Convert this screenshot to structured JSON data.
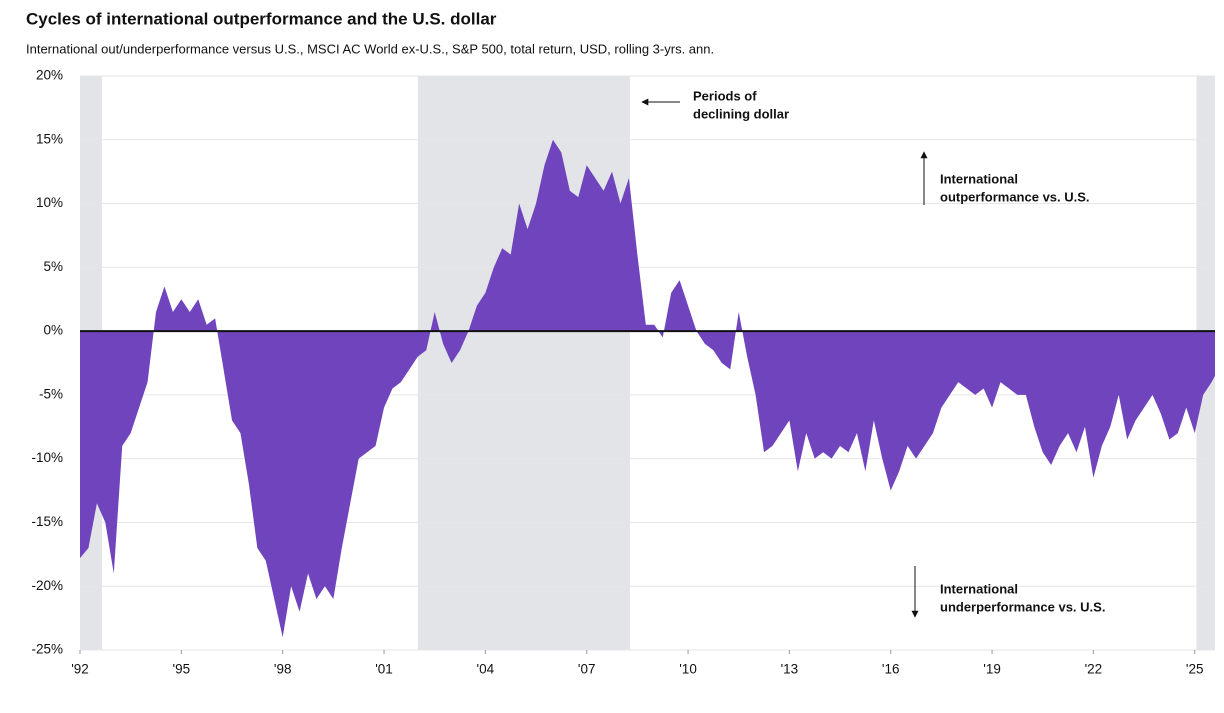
{
  "chart_data": {
    "type": "area",
    "title": "Cycles of international outperformance and the U.S. dollar",
    "subtitle": "International out/underperformance versus U.S., MSCI AC World ex-U.S., S&P 500, total return, USD, rolling 3-yrs. ann.",
    "color": "#6f44bd",
    "shade_color": "#e3e4e8",
    "grid": true,
    "shaded_periods": [
      [
        1992,
        1992.65
      ],
      [
        2002,
        2008.28
      ],
      [
        2025.05,
        2025.6
      ]
    ],
    "annotations": [
      [
        "Periods of",
        "declining dollar"
      ],
      [
        "International",
        "outperformance vs. U.S."
      ],
      [
        "International",
        "underperformance vs. U.S."
      ]
    ],
    "xlim": [
      1992,
      2025.6
    ],
    "xticks": [
      {
        "value": 1992,
        "label": "'92"
      },
      {
        "value": 1995,
        "label": "'95"
      },
      {
        "value": 1998,
        "label": "'98"
      },
      {
        "value": 2001,
        "label": "'01"
      },
      {
        "value": 2004,
        "label": "'04"
      },
      {
        "value": 2007,
        "label": "'07"
      },
      {
        "value": 2010,
        "label": "'10"
      },
      {
        "value": 2013,
        "label": "'13"
      },
      {
        "value": 2016,
        "label": "'16"
      },
      {
        "value": 2019,
        "label": "'19"
      },
      {
        "value": 2022,
        "label": "'22"
      },
      {
        "value": 2025,
        "label": "'25"
      }
    ],
    "ylim": [
      -25,
      20
    ],
    "yticks": [
      {
        "value": 20,
        "label": "20%"
      },
      {
        "value": 15,
        "label": "15%"
      },
      {
        "value": 10,
        "label": "10%"
      },
      {
        "value": 5,
        "label": "5%"
      },
      {
        "value": 0,
        "label": "0%"
      },
      {
        "value": -5,
        "label": "-5%"
      },
      {
        "value": -10,
        "label": "-10%"
      },
      {
        "value": -15,
        "label": "-15%"
      },
      {
        "value": -20,
        "label": "-20%"
      },
      {
        "value": -25,
        "label": "-25%"
      }
    ],
    "x": [
      1992.0,
      1992.25,
      1992.5,
      1992.75,
      1993.0,
      1993.25,
      1993.5,
      1993.75,
      1994.0,
      1994.25,
      1994.5,
      1994.75,
      1995.0,
      1995.25,
      1995.5,
      1995.75,
      1996.0,
      1996.25,
      1996.5,
      1996.75,
      1997.0,
      1997.25,
      1997.5,
      1997.75,
      1998.0,
      1998.25,
      1998.5,
      1998.75,
      1999.0,
      1999.25,
      1999.5,
      1999.75,
      2000.0,
      2000.25,
      2000.5,
      2000.75,
      2001.0,
      2001.25,
      2001.5,
      2001.75,
      2002.0,
      2002.25,
      2002.5,
      2002.75,
      2003.0,
      2003.25,
      2003.5,
      2003.75,
      2004.0,
      2004.25,
      2004.5,
      2004.75,
      2005.0,
      2005.25,
      2005.5,
      2005.75,
      2006.0,
      2006.25,
      2006.5,
      2006.75,
      2007.0,
      2007.25,
      2007.5,
      2007.75,
      2008.0,
      2008.25,
      2008.5,
      2008.75,
      2009.0,
      2009.25,
      2009.5,
      2009.75,
      2010.0,
      2010.25,
      2010.5,
      2010.75,
      2011.0,
      2011.25,
      2011.5,
      2011.75,
      2012.0,
      2012.25,
      2012.5,
      2012.75,
      2013.0,
      2013.25,
      2013.5,
      2013.75,
      2014.0,
      2014.25,
      2014.5,
      2014.75,
      2015.0,
      2015.25,
      2015.5,
      2015.75,
      2016.0,
      2016.25,
      2016.5,
      2016.75,
      2017.0,
      2017.25,
      2017.5,
      2017.75,
      2018.0,
      2018.25,
      2018.5,
      2018.75,
      2019.0,
      2019.25,
      2019.5,
      2019.75,
      2020.0,
      2020.25,
      2020.5,
      2020.75,
      2021.0,
      2021.25,
      2021.5,
      2021.75,
      2022.0,
      2022.25,
      2022.5,
      2022.75,
      2023.0,
      2023.25,
      2023.5,
      2023.75,
      2024.0,
      2024.25,
      2024.5,
      2024.75,
      2025.0,
      2025.25,
      2025.5,
      2025.6
    ],
    "values": [
      -17.8,
      -17,
      -13.5,
      -15,
      -19,
      -9,
      -8,
      -6,
      -4,
      1.5,
      3.5,
      1.5,
      2.5,
      1.5,
      2.5,
      0.5,
      1,
      -3,
      -7,
      -8,
      -12,
      -17,
      -18,
      -21,
      -24,
      -20,
      -22,
      -19,
      -21,
      -20,
      -21,
      -17,
      -13.5,
      -10,
      -9.5,
      -9,
      -6,
      -4.5,
      -4,
      -3,
      -2,
      -1.5,
      1.5,
      -1,
      -2.5,
      -1.5,
      0,
      2,
      3,
      5,
      6.5,
      6,
      10,
      8,
      10,
      13,
      15,
      14,
      11,
      10.5,
      13,
      12,
      11,
      12.5,
      10,
      12,
      6,
      0.5,
      0.5,
      -0.5,
      3,
      4,
      2,
      0,
      -1,
      -1.5,
      -2.5,
      -3,
      1.5,
      -2,
      -5,
      -9.5,
      -9,
      -8,
      -7,
      -11,
      -8,
      -10,
      -9.5,
      -10,
      -9,
      -9.5,
      -8,
      -11,
      -7,
      -10,
      -12.5,
      -11,
      -9,
      -10,
      -9,
      -8,
      -6,
      -5,
      -4,
      -4.5,
      -5,
      -4.5,
      -6,
      -4,
      -4.5,
      -5,
      -5,
      -7.5,
      -9.5,
      -10.5,
      -9,
      -8,
      -9.5,
      -7.5,
      -11.5,
      -9,
      -7.5,
      -5,
      -8.5,
      -7,
      -6,
      -5,
      -6.5,
      -8.5,
      -8,
      -6,
      -8,
      -5,
      -4,
      -3.5
    ]
  }
}
